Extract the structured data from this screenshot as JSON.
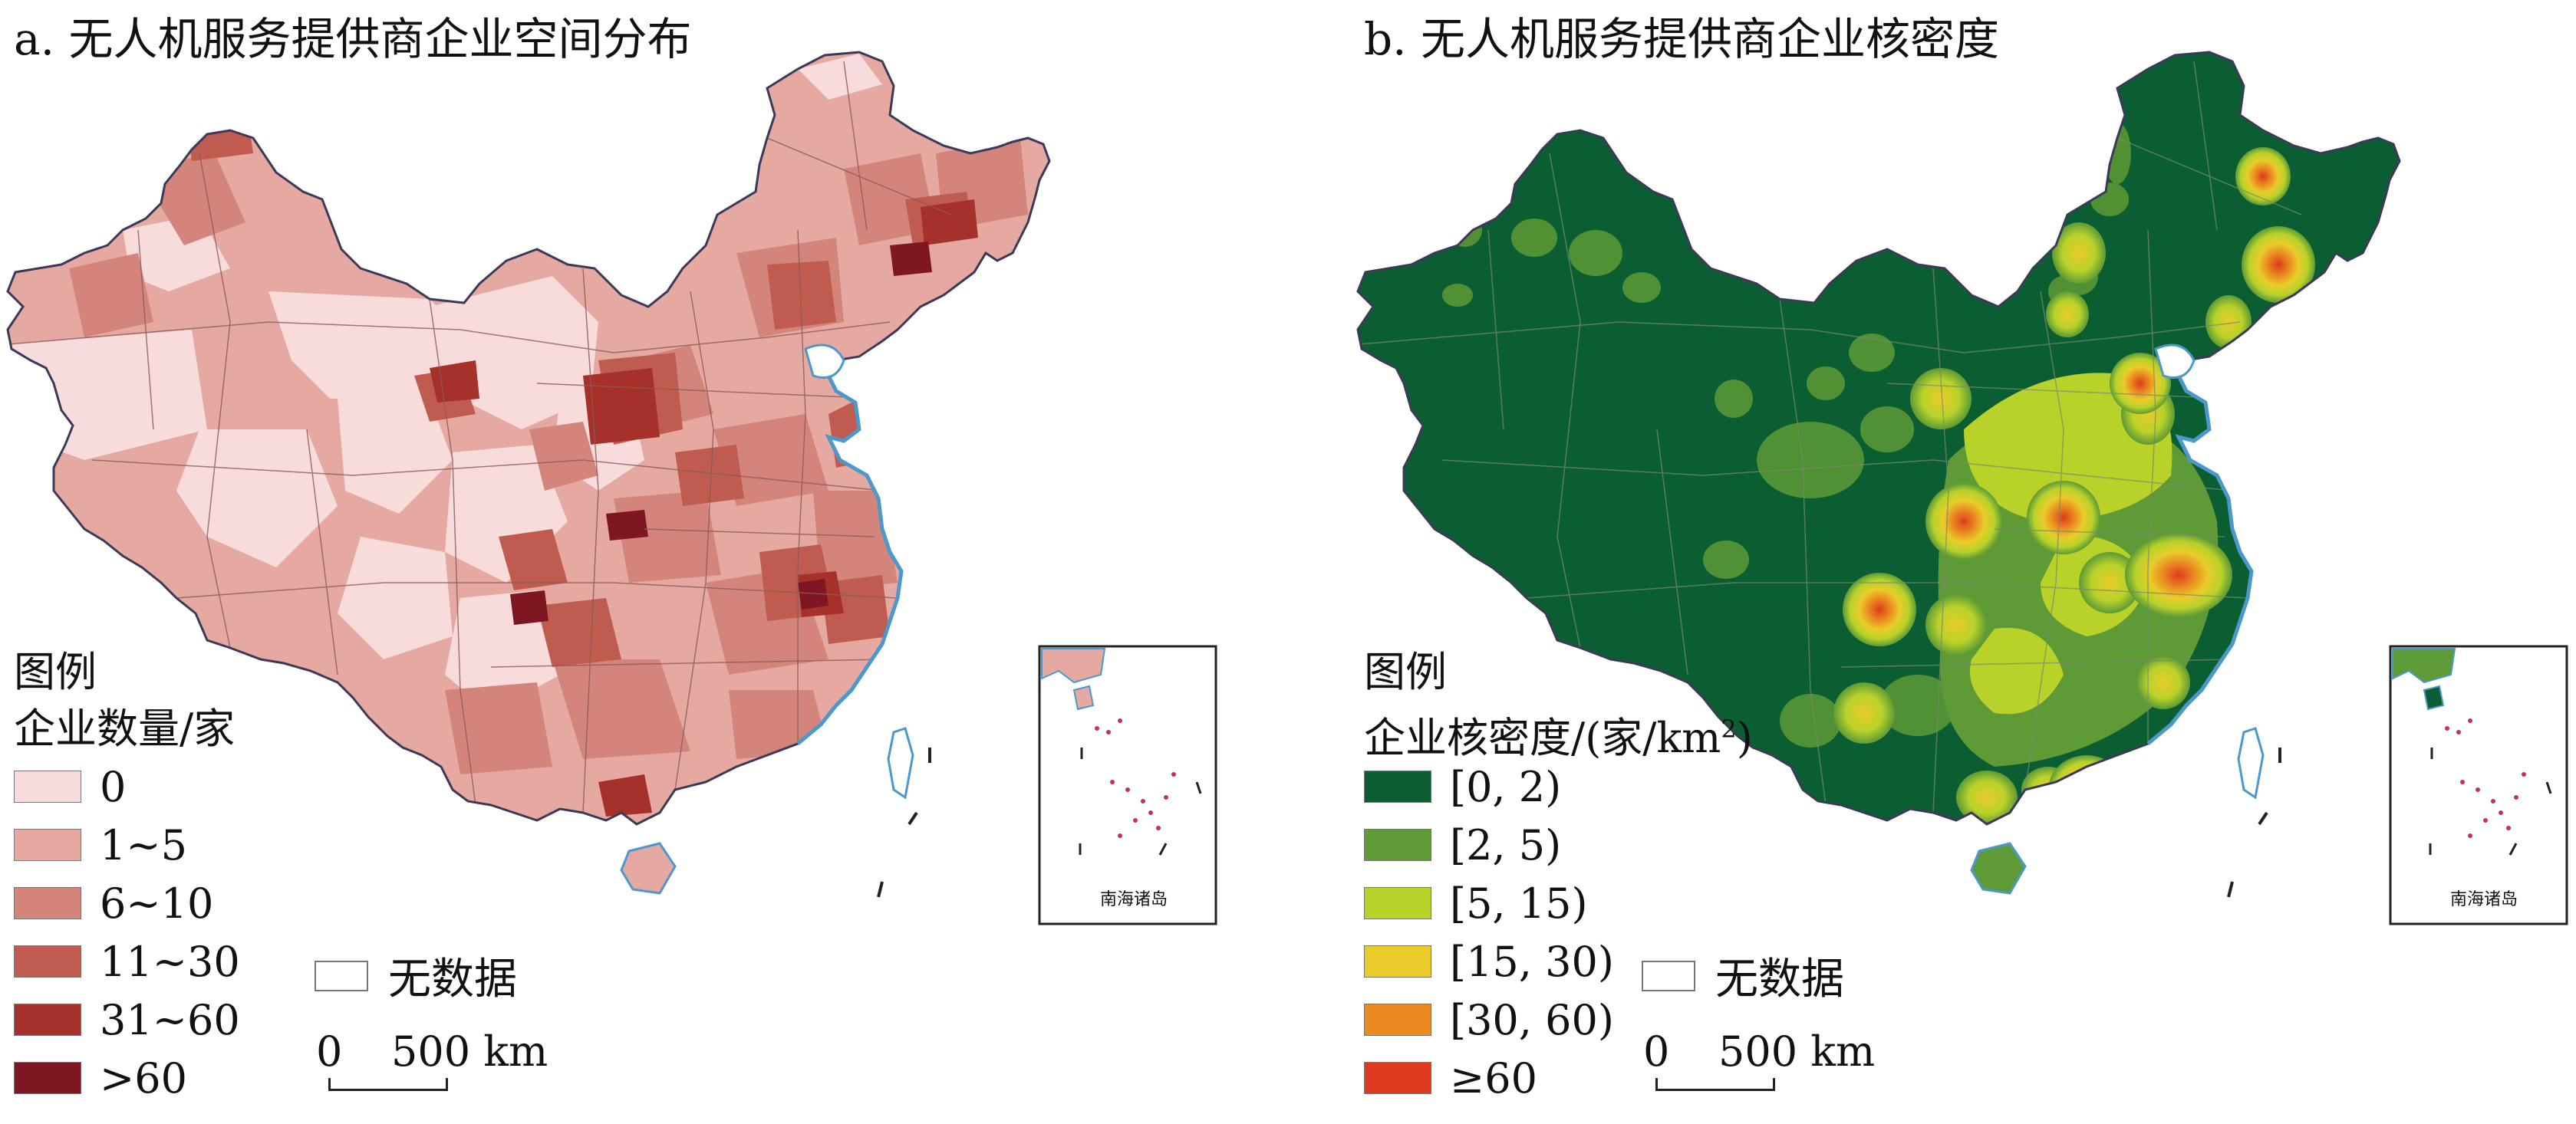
{
  "panels": [
    {
      "title": "a. 无人机服务提供商企业空间分布",
      "legend_title": "图例",
      "legend_subtitle": "企业数量/家",
      "legend_items": [
        {
          "label": "0",
          "color": "#f8dcdc"
        },
        {
          "label": "1~5",
          "color": "#e5a9a2"
        },
        {
          "label": "6~10",
          "color": "#d4857b"
        },
        {
          "label": "11~30",
          "color": "#bf5c4f"
        },
        {
          "label": "31~60",
          "color": "#a6302a"
        },
        {
          "label": ">60",
          "color": "#7e1722"
        }
      ],
      "no_data_label": "无数据",
      "scale_start": "0",
      "scale_end": "500 km",
      "inset_label": "南海诸岛"
    },
    {
      "title": "b. 无人机服务提供商企业核密度",
      "legend_title": "图例",
      "legend_subtitle_main": "企业核密度/(家/km",
      "legend_subtitle_sup": "2",
      "legend_subtitle_end": ")",
      "legend_items": [
        {
          "label": "[0, 2)",
          "color": "#0b5e32"
        },
        {
          "label": "[2, 5)",
          "color": "#5e9a36"
        },
        {
          "label": "[5, 15)",
          "color": "#b8d22a"
        },
        {
          "label": "[15, 30)",
          "color": "#e9cc2a"
        },
        {
          "label": "[30, 60)",
          "color": "#ea8a20"
        },
        {
          "label": "≥60",
          "color": "#de3b1e"
        }
      ],
      "no_data_label": "无数据",
      "scale_start": "0",
      "scale_end": "500 km",
      "inset_label": "南海诸岛"
    }
  ],
  "colors": {
    "coast": "#4a98cc",
    "border": "#3a3a58",
    "sea": "#bfe0f2"
  }
}
